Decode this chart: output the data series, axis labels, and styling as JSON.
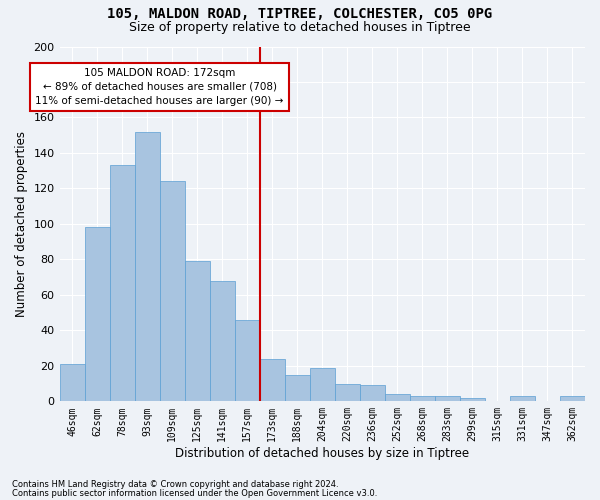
{
  "title1": "105, MALDON ROAD, TIPTREE, COLCHESTER, CO5 0PG",
  "title2": "Size of property relative to detached houses in Tiptree",
  "xlabel": "Distribution of detached houses by size in Tiptree",
  "ylabel": "Number of detached properties",
  "footer1": "Contains HM Land Registry data © Crown copyright and database right 2024.",
  "footer2": "Contains public sector information licensed under the Open Government Licence v3.0.",
  "categories": [
    "46sqm",
    "62sqm",
    "78sqm",
    "93sqm",
    "109sqm",
    "125sqm",
    "141sqm",
    "157sqm",
    "173sqm",
    "188sqm",
    "204sqm",
    "220sqm",
    "236sqm",
    "252sqm",
    "268sqm",
    "283sqm",
    "299sqm",
    "315sqm",
    "331sqm",
    "347sqm",
    "362sqm"
  ],
  "values": [
    21,
    98,
    133,
    152,
    124,
    79,
    68,
    46,
    24,
    15,
    19,
    10,
    9,
    4,
    3,
    3,
    2,
    0,
    3,
    0,
    3
  ],
  "bar_color": "#a8c4e0",
  "bar_edge_color": "#5a9fd4",
  "annotation_text": "105 MALDON ROAD: 172sqm\n← 89% of detached houses are smaller (708)\n11% of semi-detached houses are larger (90) →",
  "annotation_box_color": "#ffffff",
  "annotation_border_color": "#cc0000",
  "vline_color": "#cc0000",
  "background_color": "#eef2f7",
  "grid_color": "#ffffff",
  "ylim": [
    0,
    200
  ],
  "yticks": [
    0,
    20,
    40,
    60,
    80,
    100,
    120,
    140,
    160,
    180,
    200
  ],
  "title_fontsize": 10,
  "subtitle_fontsize": 9,
  "tick_fontsize": 7,
  "ylabel_fontsize": 8.5,
  "xlabel_fontsize": 8.5,
  "ann_fontsize": 7.5,
  "footer_fontsize": 6
}
